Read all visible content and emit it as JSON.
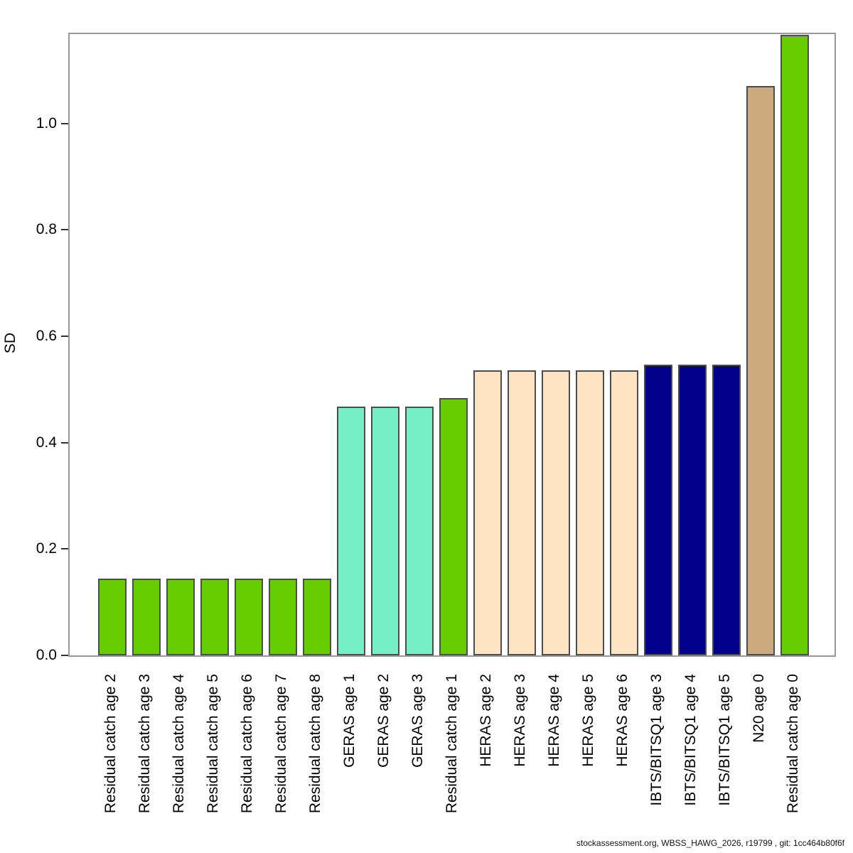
{
  "caption": "stockassessment.org, WBSS_HAWG_2026, r19799 , git: 1cc464b80f6f",
  "chart_data": {
    "type": "bar",
    "title": "",
    "xlabel": "",
    "ylabel": "SD",
    "ylim": [
      0,
      1.168
    ],
    "yticks": [
      0.0,
      0.2,
      0.4,
      0.6,
      0.8,
      1.0
    ],
    "grid": false,
    "legend": "none",
    "categories": [
      "Residual catch age 2",
      "Residual catch age 3",
      "Residual catch age 4",
      "Residual catch age 5",
      "Residual catch age 6",
      "Residual catch age 7",
      "Residual catch age 8",
      "GERAS age 1",
      "GERAS age 2",
      "GERAS age 3",
      "Residual catch age 1",
      "HERAS age 2",
      "HERAS age 3",
      "HERAS age 4",
      "HERAS age 5",
      "HERAS age 6",
      "IBTS/BITSQ1 age 3",
      "IBTS/BITSQ1 age 4",
      "IBTS/BITSQ1 age 5",
      "N20 age 0",
      "Residual catch age 0"
    ],
    "values": [
      0.144,
      0.144,
      0.144,
      0.144,
      0.144,
      0.144,
      0.144,
      0.468,
      0.468,
      0.468,
      0.484,
      0.536,
      0.536,
      0.536,
      0.536,
      0.536,
      0.547,
      0.547,
      0.547,
      1.071,
      1.167
    ],
    "bar_colors": [
      "#66CD00",
      "#66CD00",
      "#66CD00",
      "#66CD00",
      "#66CD00",
      "#66CD00",
      "#66CD00",
      "#76EEC6",
      "#76EEC6",
      "#76EEC6",
      "#66CD00",
      "#FFE4C4",
      "#FFE4C4",
      "#FFE4C4",
      "#FFE4C4",
      "#FFE4C4",
      "#00008B",
      "#00008B",
      "#00008B",
      "#CDAA7D",
      "#66CD00"
    ],
    "palette": {
      "residual_catch": "#66CD00",
      "geras": "#76EEC6",
      "heras": "#FFE4C4",
      "ibts_bitsq1": "#00008B",
      "n20": "#CDAA7D",
      "bar_border": "#4d4d4d",
      "frame": "#989898",
      "tick": "#333333"
    }
  }
}
